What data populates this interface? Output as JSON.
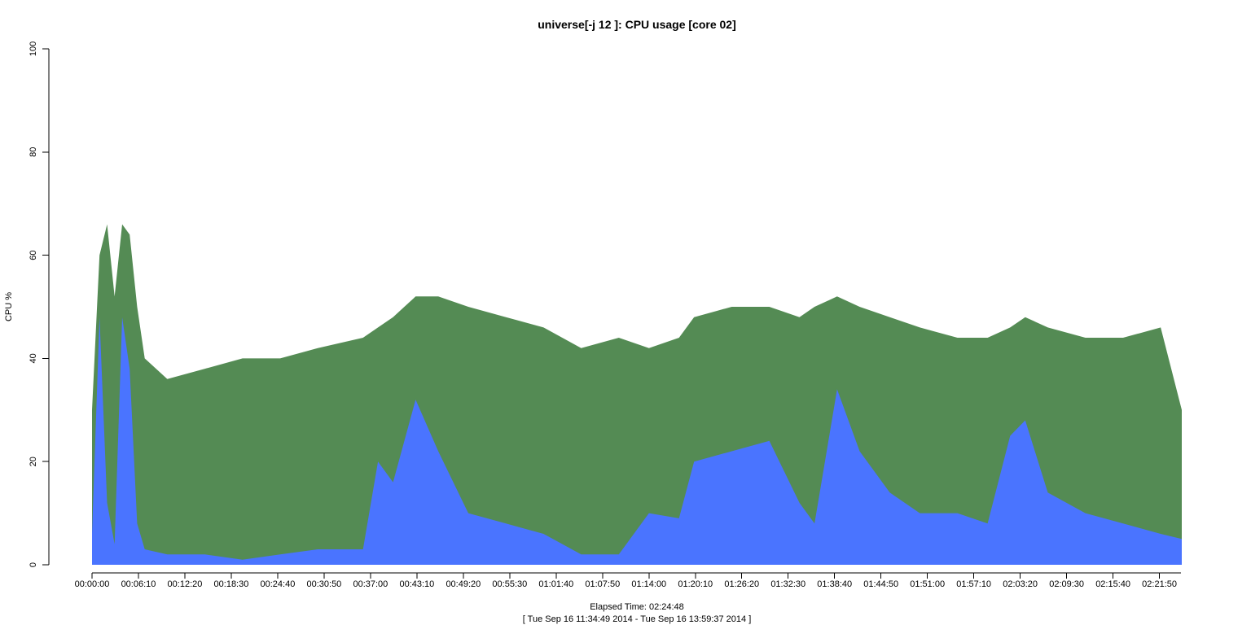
{
  "chart_data": {
    "type": "area",
    "title": "universe[-j 12  ]: CPU usage [core 02]",
    "xlabel": "Elapsed Time: 02:24:48",
    "x_range_label": "[ Tue Sep 16 11:34:49 2014 - Tue Sep 16 13:59:37 2014 ]",
    "ylabel": "CPU %",
    "ylim": [
      0,
      100
    ],
    "yticks": [
      0,
      20,
      40,
      60,
      80,
      100
    ],
    "xlim_seconds": [
      0,
      8688
    ],
    "xticks": [
      "00:00:00",
      "00:06:10",
      "00:12:20",
      "00:18:30",
      "00:24:40",
      "00:30:50",
      "00:37:00",
      "00:43:10",
      "00:49:20",
      "00:55:30",
      "01:01:40",
      "01:07:50",
      "01:14:00",
      "01:20:10",
      "01:26:20",
      "01:32:30",
      "01:38:40",
      "01:44:50",
      "01:51:00",
      "01:57:10",
      "02:03:20",
      "02:09:30",
      "02:15:40",
      "02:21:50"
    ],
    "grid": false,
    "legend": "none",
    "series": [
      {
        "color": "#4a74ff",
        "stacking": "bottom",
        "x": [
          "00:00:00",
          "00:01:00",
          "00:02:00",
          "00:03:00",
          "00:04:00",
          "00:05:00",
          "00:06:00",
          "00:07:00",
          "00:10:00",
          "00:15:00",
          "00:20:00",
          "00:25:00",
          "00:30:00",
          "00:36:00",
          "00:38:00",
          "00:40:00",
          "00:43:00",
          "00:46:00",
          "00:50:00",
          "00:55:00",
          "01:00:00",
          "01:05:00",
          "01:10:00",
          "01:14:00",
          "01:18:00",
          "01:20:00",
          "01:25:00",
          "01:30:00",
          "01:34:00",
          "01:36:00",
          "01:39:00",
          "01:42:00",
          "01:46:00",
          "01:50:00",
          "01:55:00",
          "01:59:00",
          "02:02:00",
          "02:04:00",
          "02:07:00",
          "02:12:00",
          "02:17:00",
          "02:22:00",
          "02:24:48"
        ],
        "values": [
          6,
          48,
          12,
          4,
          48,
          38,
          8,
          3,
          2,
          2,
          1,
          2,
          3,
          3,
          20,
          16,
          32,
          22,
          10,
          8,
          6,
          2,
          2,
          10,
          9,
          20,
          22,
          24,
          12,
          8,
          34,
          22,
          14,
          10,
          10,
          8,
          25,
          28,
          14,
          10,
          8,
          6,
          5
        ]
      },
      {
        "color": "#548b54",
        "stacking": "top",
        "x": [
          "00:00:00",
          "00:01:00",
          "00:02:00",
          "00:03:00",
          "00:04:00",
          "00:05:00",
          "00:06:00",
          "00:07:00",
          "00:10:00",
          "00:15:00",
          "00:20:00",
          "00:25:00",
          "00:30:00",
          "00:36:00",
          "00:38:00",
          "00:40:00",
          "00:43:00",
          "00:46:00",
          "00:50:00",
          "00:55:00",
          "01:00:00",
          "01:05:00",
          "01:10:00",
          "01:14:00",
          "01:18:00",
          "01:20:00",
          "01:25:00",
          "01:30:00",
          "01:34:00",
          "01:36:00",
          "01:39:00",
          "01:42:00",
          "01:46:00",
          "01:50:00",
          "01:55:00",
          "01:59:00",
          "02:02:00",
          "02:04:00",
          "02:07:00",
          "02:12:00",
          "02:17:00",
          "02:22:00",
          "02:24:48"
        ],
        "values": [
          30,
          60,
          66,
          52,
          66,
          64,
          50,
          40,
          36,
          38,
          40,
          40,
          42,
          44,
          46,
          48,
          52,
          52,
          50,
          48,
          46,
          42,
          44,
          42,
          44,
          48,
          50,
          50,
          48,
          50,
          52,
          50,
          48,
          46,
          44,
          44,
          46,
          48,
          46,
          44,
          44,
          46,
          30
        ]
      }
    ]
  }
}
